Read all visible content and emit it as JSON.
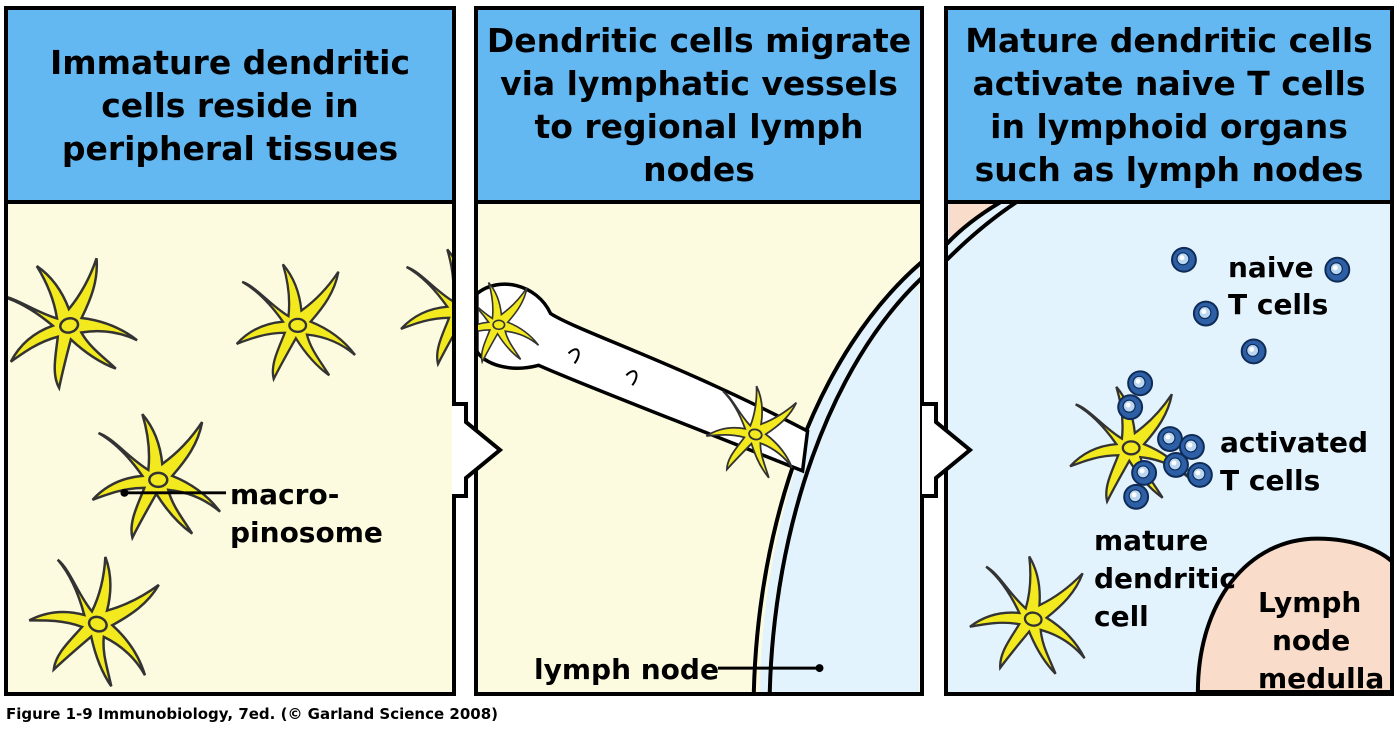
{
  "panels": [
    {
      "title": "Immature dendritic cells reside in peripheral tissues",
      "labels": {
        "macro": "macro-",
        "pinosome": "pinosome"
      }
    },
    {
      "title": "Dendritic cells migrate via lymphatic vessels to regional lymph nodes",
      "labels": {
        "lymph_node": "lymph node"
      }
    },
    {
      "title": "Mature dendritic cells activate naive T cells in lymphoid organs such as lymph nodes",
      "labels": {
        "naive_1": "naive",
        "naive_2": "T cells",
        "activated_1": "activated",
        "activated_2": "T cells",
        "mature_1": "mature",
        "mature_2": "dendritic",
        "mature_3": "cell",
        "medulla_1": "Lymph",
        "medulla_2": "node",
        "medulla_3": "medulla"
      }
    }
  ],
  "caption": "Figure 1-9  Immunobiology, 7ed. (© Garland Science 2008)",
  "colors": {
    "header": "#64b8f2",
    "tissue": "#fdfbdf",
    "lymph_node": "#e2f3fd",
    "medulla": "#f9dcc9",
    "dendritic_cell": "#f2e91e",
    "t_cell": "#2c5fa6"
  }
}
